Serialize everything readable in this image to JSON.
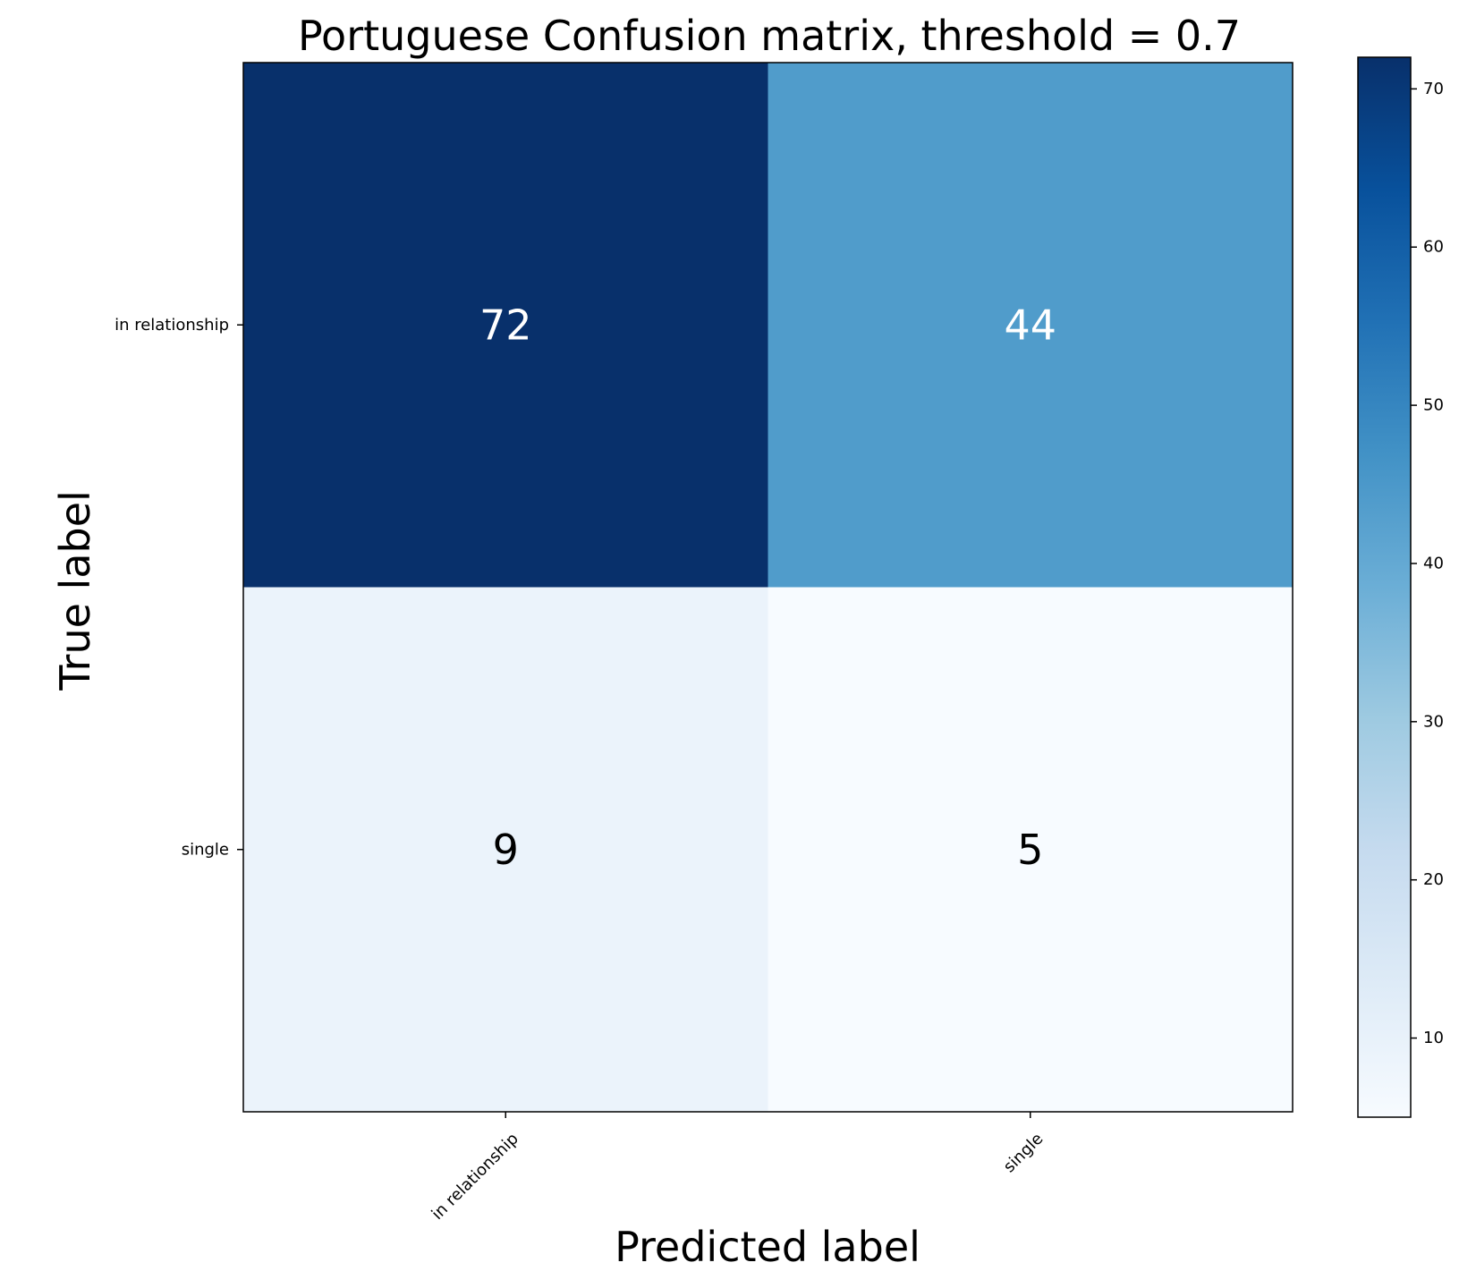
{
  "chart_data": {
    "type": "heatmap",
    "title": "Portuguese Confusion matrix, threshold = 0.7",
    "xlabel": "Predicted label",
    "ylabel": "True label",
    "x_categories": [
      "in relationship",
      "single"
    ],
    "y_categories": [
      "in relationship",
      "single"
    ],
    "matrix": [
      [
        72,
        44
      ],
      [
        9,
        5
      ]
    ],
    "colormap": "Blues",
    "colorbar": {
      "min": 5,
      "max": 72,
      "ticks": [
        10,
        20,
        30,
        40,
        50,
        60,
        70
      ]
    },
    "colors": {
      "cell_high_text": "#ffffff",
      "cell_low_text": "#000000"
    }
  }
}
